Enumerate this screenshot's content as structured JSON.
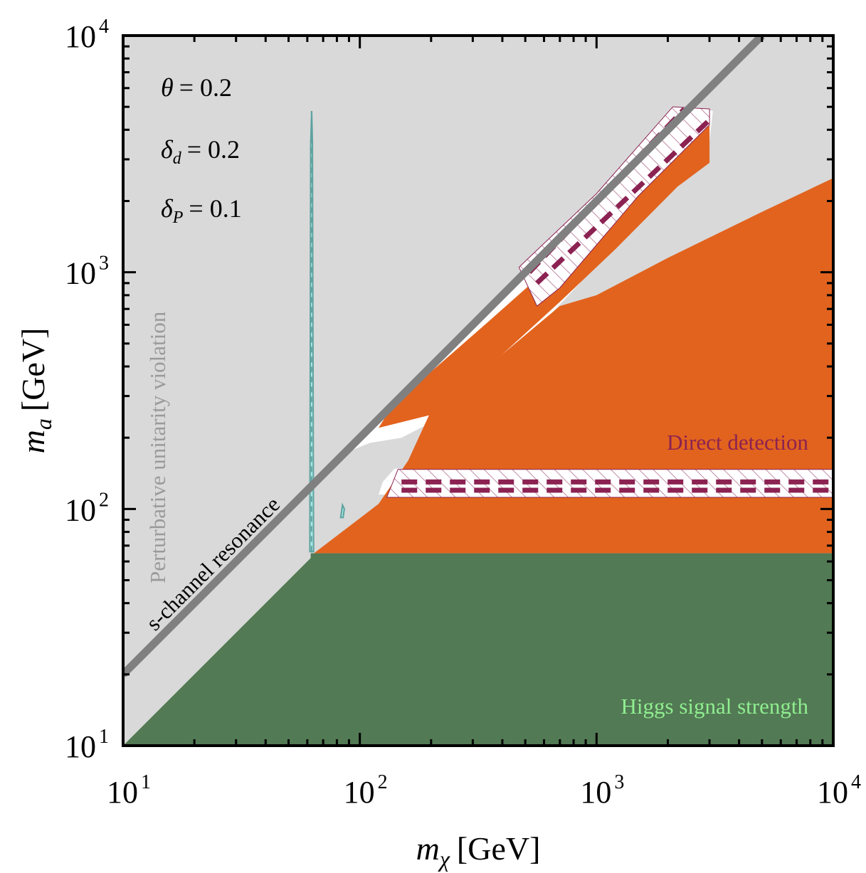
{
  "chart_data": {
    "type": "area",
    "x_scale": "log",
    "y_scale": "log",
    "xlim": [
      10,
      10000
    ],
    "ylim": [
      10,
      10000
    ],
    "xlabel": "m_χ [GeV]",
    "ylabel": "m_a [GeV]",
    "xlabel_main": "m",
    "xlabel_sub": "χ",
    "xlabel_unit": "[GeV]",
    "ylabel_main": "m",
    "ylabel_sub": "a",
    "ylabel_unit": "[GeV]",
    "x_ticks": [
      {
        "value": 10,
        "base": "10",
        "exp": "1"
      },
      {
        "value": 100,
        "base": "10",
        "exp": "2"
      },
      {
        "value": 1000,
        "base": "10",
        "exp": "3"
      },
      {
        "value": 10000,
        "base": "10",
        "exp": "4"
      }
    ],
    "y_ticks": [
      {
        "value": 10,
        "base": "10",
        "exp": "1"
      },
      {
        "value": 100,
        "base": "10",
        "exp": "2"
      },
      {
        "value": 1000,
        "base": "10",
        "exp": "3"
      },
      {
        "value": 10000,
        "base": "10",
        "exp": "4"
      }
    ],
    "parameters": [
      {
        "symbol": "θ",
        "sub": "",
        "value": "= 0.2"
      },
      {
        "symbol": "δ",
        "sub": "d",
        "value": "= 0.2"
      },
      {
        "symbol": "δ",
        "sub": "P",
        "value": "= 0.1"
      }
    ],
    "labels": {
      "unitarity": "Perturbative unitarity violation",
      "resonance": "s-channel resonance",
      "direct_detection": "Direct detection",
      "higgs": "Higgs signal strength"
    },
    "colors": {
      "unitarity": "#d9d9d9",
      "allowed": "#ffffff",
      "relic_orange": "#e2631e",
      "higgs_green": "#527a54",
      "direct_detection": "#8b2252",
      "resonance_line": "#808080",
      "cyan": "#a8e6e3",
      "teal": "#5fa3a0",
      "higgs_label": "#90ee90",
      "unitarity_label": "#9a9a9a"
    },
    "series": [
      {
        "name": "s-channel resonance",
        "kind": "line",
        "points": [
          [
            10,
            20
          ],
          [
            5000,
            10000
          ]
        ]
      },
      {
        "name": "Higgs signal strength",
        "kind": "region",
        "points": [
          [
            10,
            10
          ],
          [
            62,
            62
          ],
          [
            62,
            65
          ],
          [
            10000,
            65
          ],
          [
            10000,
            10
          ]
        ]
      },
      {
        "name": "Relic density (orange, lower right)",
        "kind": "region",
        "points": [
          [
            64,
            65
          ],
          [
            120,
            105
          ],
          [
            160,
            160
          ],
          [
            200,
            260
          ],
          [
            400,
            450
          ],
          [
            700,
            720
          ],
          [
            1000,
            800
          ],
          [
            2000,
            1150
          ],
          [
            5000,
            1800
          ],
          [
            10000,
            2500
          ],
          [
            10000,
            65
          ]
        ]
      },
      {
        "name": "Relic density (orange, upper band)",
        "kind": "region",
        "points": [
          [
            130,
            250
          ],
          [
            200,
            380
          ],
          [
            350,
            620
          ],
          [
            600,
            1000
          ],
          [
            1000,
            1600
          ],
          [
            1700,
            2600
          ],
          [
            2400,
            3700
          ],
          [
            3000,
            4500
          ],
          [
            3000,
            2900
          ],
          [
            2200,
            2300
          ],
          [
            1200,
            1250
          ],
          [
            700,
            750
          ],
          [
            400,
            450
          ],
          [
            200,
            250
          ],
          [
            120,
            220
          ]
        ]
      },
      {
        "name": "Direct detection (horizontal band)",
        "kind": "dashed-band",
        "y_values": [
          120,
          130
        ],
        "x_range": [
          130,
          10000
        ]
      },
      {
        "name": "Direct detection (diagonal band)",
        "kind": "dashed-band",
        "segments": [
          [
            [
              520,
              1000
            ],
            [
              2350,
              4900
            ]
          ],
          [
            [
              560,
              900
            ],
            [
              3000,
              4400
            ]
          ]
        ]
      },
      {
        "name": "Relic resonance spike (cyan)",
        "kind": "line",
        "points": [
          [
            62.5,
            66
          ],
          [
            62.5,
            4800
          ]
        ]
      }
    ]
  }
}
